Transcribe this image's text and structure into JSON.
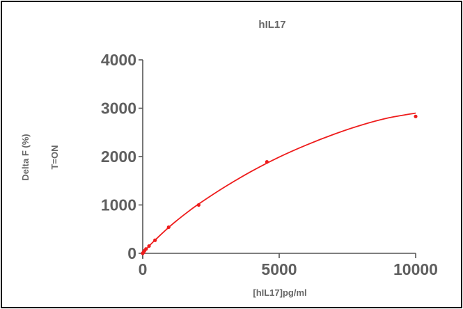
{
  "chart_data": {
    "type": "scatter",
    "title": "hIL17",
    "xlabel": "[hIL17]pg/ml",
    "ylabel": "Delta F (%)",
    "ylabel2": "T=ON",
    "xlim": [
      0,
      10000
    ],
    "ylim": [
      0,
      4000
    ],
    "xticks": [
      "0",
      "5000",
      "10000"
    ],
    "yticks": [
      "0",
      "1000",
      "2000",
      "3000",
      "4000"
    ],
    "grid": false,
    "colors": {
      "series": "#ee1c1c",
      "axis": "#555555",
      "text": "#5f5f5f"
    },
    "series": [
      {
        "x": [
          0,
          20,
          60,
          120,
          230,
          450,
          950,
          2050,
          4550,
          10000
        ],
        "y": [
          0,
          15,
          50,
          90,
          150,
          270,
          540,
          1000,
          1890,
          2830
        ]
      }
    ],
    "fit_curve": {
      "x": [
        0,
        250,
        500,
        1000,
        1500,
        2000,
        3000,
        4000,
        5000,
        6000,
        7000,
        8000,
        9000,
        10000
      ],
      "y": [
        0,
        160,
        300,
        560,
        790,
        1000,
        1370,
        1700,
        1990,
        2240,
        2460,
        2650,
        2800,
        2900
      ]
    }
  }
}
